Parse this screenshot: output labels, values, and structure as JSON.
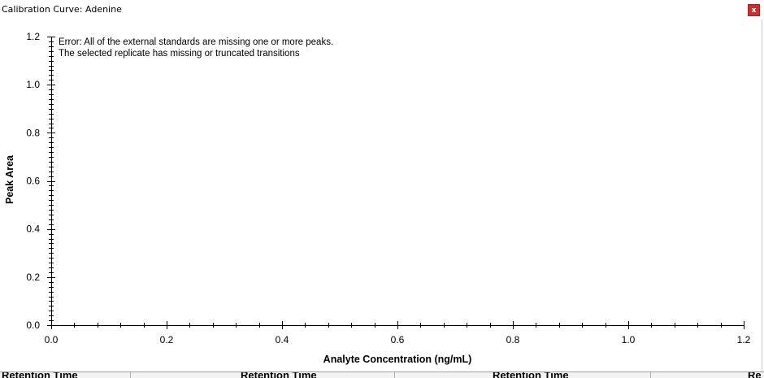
{
  "window": {
    "title": "Calibration Curve: Adenine",
    "close_label": "x"
  },
  "error_message": {
    "line1": "Error: All of the external standards are missing one or more peaks.",
    "line2": "The selected replicate has missing or truncated transitions"
  },
  "chart_data": {
    "type": "scatter",
    "x": [],
    "y": [],
    "xlabel": "Analyte Concentration (ng/mL)",
    "ylabel": "Peak Area",
    "xlim": [
      0,
      1.2
    ],
    "ylim": [
      0,
      1.2
    ],
    "xticks": [
      "0.0",
      "0.2",
      "0.4",
      "0.6",
      "0.8",
      "1.0",
      "1.2"
    ],
    "yticks": [
      "0.0",
      "0.2",
      "0.4",
      "0.6",
      "0.8",
      "1.0",
      "1.2"
    ],
    "grid": false
  },
  "background_columns": [
    "Retention Time",
    "Retention Time",
    "Retention Time",
    "Re"
  ]
}
